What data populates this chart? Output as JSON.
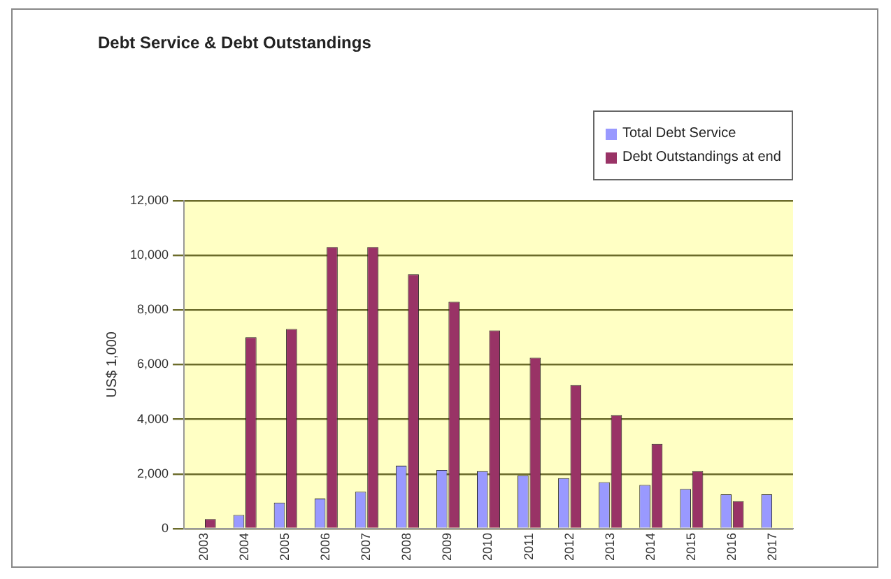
{
  "chart_data": {
    "type": "bar",
    "title": "Debt Service & Debt Outstandings",
    "ylabel": "US$ 1,000",
    "categories": [
      "2003",
      "2004",
      "2005",
      "2006",
      "2007",
      "2008",
      "2009",
      "2010",
      "2011",
      "2012",
      "2013",
      "2014",
      "2015",
      "2016",
      "2017"
    ],
    "series": [
      {
        "name": "Total Debt Service",
        "color": "#9999ff",
        "values": [
          null,
          500,
          950,
          1100,
          1350,
          2300,
          2150,
          2100,
          1950,
          1850,
          1700,
          1600,
          1450,
          1250,
          1250
        ]
      },
      {
        "name": "Debt Outstandings at end",
        "color": "#993366",
        "values": [
          350,
          7000,
          7300,
          10300,
          10300,
          9300,
          8300,
          7250,
          6250,
          5250,
          4150,
          3100,
          2100,
          1000,
          null
        ]
      }
    ],
    "ylim": [
      0,
      12000
    ],
    "yticks": [
      0,
      {
        "value": 2000,
        "label": "2,000"
      },
      {
        "value": 4000,
        "label": "4,000"
      },
      {
        "value": 6000,
        "label": "6,000"
      },
      {
        "value": 8000,
        "label": "8,000"
      },
      {
        "value": 10000,
        "label": "10,000"
      },
      {
        "value": 12000,
        "label": "12,000"
      }
    ],
    "grid": "y",
    "legend": "top right"
  }
}
